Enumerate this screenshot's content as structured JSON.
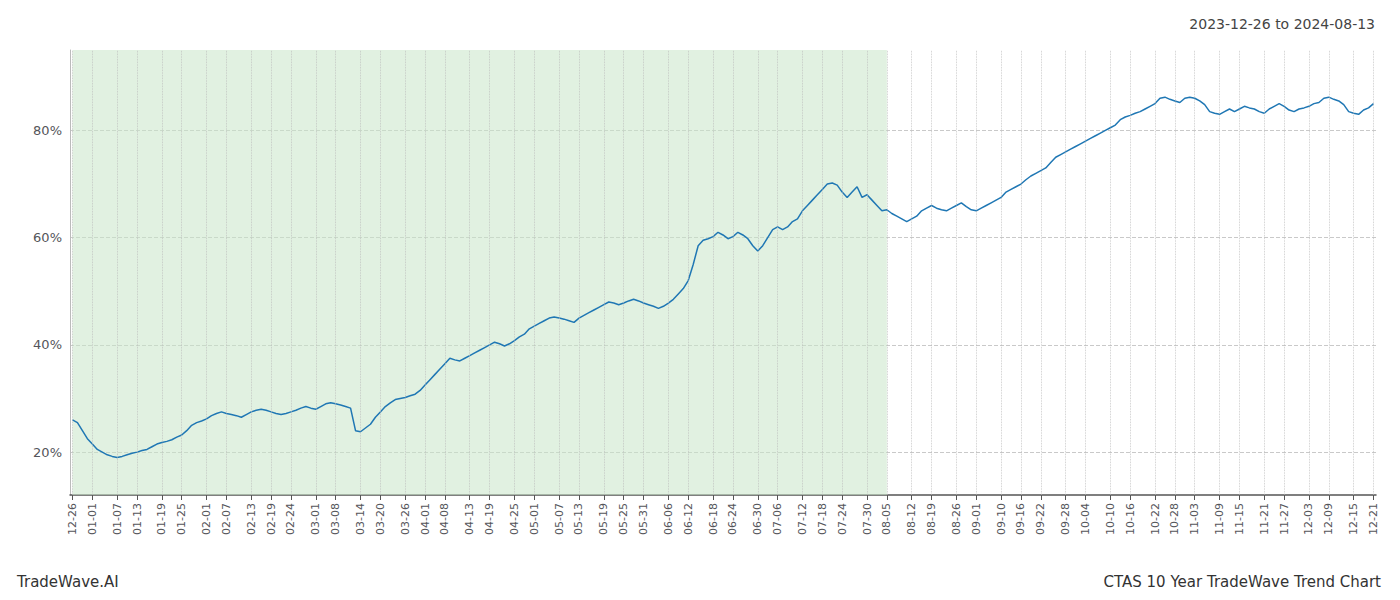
{
  "chart_data": {
    "type": "line",
    "title": "2023-12-26 to 2024-08-13",
    "annotations": [
      "TradeWave.AI",
      "CTAS 10 Year TradeWave Trend Chart"
    ],
    "color": "#1f77b4",
    "grid": true,
    "ylim": [
      12,
      95
    ],
    "yticks": [
      {
        "value": 20,
        "label": "20%"
      },
      {
        "value": 40,
        "label": "40%"
      },
      {
        "value": 60,
        "label": "60%"
      },
      {
        "value": 80,
        "label": "80%"
      }
    ],
    "shaded_region": {
      "start": "12-26",
      "end": "08-05",
      "color": "#c8e6c8"
    },
    "categories": [
      "12-26",
      null,
      null,
      null,
      "01-01",
      null,
      null,
      null,
      null,
      "01-07",
      null,
      null,
      null,
      "01-13",
      null,
      null,
      null,
      null,
      "01-19",
      null,
      null,
      null,
      "01-25",
      null,
      null,
      null,
      null,
      "02-01",
      null,
      null,
      null,
      "02-07",
      null,
      null,
      null,
      null,
      "02-13",
      null,
      null,
      null,
      "02-19",
      null,
      null,
      null,
      "02-24",
      null,
      null,
      null,
      null,
      "03-01",
      null,
      null,
      null,
      "03-08",
      null,
      null,
      null,
      null,
      "03-14",
      null,
      null,
      null,
      "03-20",
      null,
      null,
      null,
      null,
      "03-26",
      null,
      null,
      null,
      "04-01",
      null,
      null,
      null,
      "04-08",
      null,
      null,
      null,
      null,
      "04-13",
      null,
      null,
      null,
      "04-19",
      null,
      null,
      null,
      null,
      "04-25",
      null,
      null,
      null,
      "05-01",
      null,
      null,
      null,
      null,
      "05-07",
      null,
      null,
      null,
      "05-13",
      null,
      null,
      null,
      null,
      "05-19",
      null,
      null,
      null,
      "05-25",
      null,
      null,
      null,
      "05-31",
      null,
      null,
      null,
      null,
      "06-06",
      null,
      null,
      null,
      "06-12",
      null,
      null,
      null,
      null,
      "06-18",
      null,
      null,
      null,
      "06-24",
      null,
      null,
      null,
      null,
      "06-30",
      null,
      null,
      null,
      "07-06",
      null,
      null,
      null,
      null,
      "07-12",
      null,
      null,
      null,
      "07-18",
      null,
      null,
      null,
      "07-24",
      null,
      null,
      null,
      null,
      "07-30",
      null,
      null,
      null,
      "08-05",
      null,
      null,
      null,
      null,
      "08-12",
      null,
      null,
      null,
      "08-19",
      null,
      null,
      null,
      null,
      "08-26",
      null,
      null,
      null,
      "09-01",
      null,
      null,
      null,
      null,
      "09-10",
      null,
      null,
      null,
      "09-16",
      null,
      null,
      null,
      "09-22",
      null,
      null,
      null,
      null,
      "09-28",
      null,
      null,
      null,
      "10-04",
      null,
      null,
      null,
      null,
      "10-10",
      null,
      null,
      null,
      "10-16",
      null,
      null,
      null,
      null,
      "10-22",
      null,
      null,
      null,
      "10-28",
      null,
      null,
      null,
      "11-03",
      null,
      null,
      null,
      null,
      "11-09",
      null,
      null,
      null,
      "11-15",
      null,
      null,
      null,
      null,
      "11-21",
      null,
      null,
      null,
      "11-27",
      null,
      null,
      null,
      null,
      "12-03",
      null,
      null,
      null,
      "12-09",
      null,
      null,
      null,
      null,
      "12-15",
      null,
      null,
      null,
      "12-21"
    ],
    "values": [
      26.0,
      25.5,
      24.0,
      22.5,
      21.5,
      20.5,
      20.0,
      19.5,
      19.2,
      19.0,
      19.2,
      19.5,
      19.8,
      20.0,
      20.3,
      20.5,
      21.0,
      21.5,
      21.8,
      22.0,
      22.3,
      22.8,
      23.2,
      24.0,
      25.0,
      25.5,
      25.8,
      26.2,
      26.8,
      27.2,
      27.5,
      27.2,
      27.0,
      26.8,
      26.5,
      27.0,
      27.5,
      27.8,
      28.0,
      27.8,
      27.5,
      27.2,
      27.0,
      27.2,
      27.5,
      27.8,
      28.2,
      28.5,
      28.2,
      28.0,
      28.5,
      29.0,
      29.2,
      29.0,
      28.8,
      28.5,
      28.2,
      24.0,
      23.8,
      24.5,
      25.2,
      26.5,
      27.5,
      28.5,
      29.2,
      29.8,
      30.0,
      30.2,
      30.5,
      30.8,
      31.5,
      32.5,
      33.5,
      34.5,
      35.5,
      36.5,
      37.5,
      37.2,
      37.0,
      37.5,
      38.0,
      38.5,
      39.0,
      39.5,
      40.0,
      40.5,
      40.2,
      39.8,
      40.2,
      40.8,
      41.5,
      42.0,
      43.0,
      43.5,
      44.0,
      44.5,
      45.0,
      45.2,
      45.0,
      44.8,
      44.5,
      44.2,
      45.0,
      45.5,
      46.0,
      46.5,
      47.0,
      47.5,
      48.0,
      47.8,
      47.5,
      47.8,
      48.2,
      48.5,
      48.2,
      47.8,
      47.5,
      47.2,
      46.8,
      47.2,
      47.8,
      48.5,
      49.5,
      50.5,
      52.0,
      55.0,
      58.5,
      59.5,
      59.8,
      60.2,
      61.0,
      60.5,
      59.8,
      60.2,
      61.0,
      60.5,
      59.8,
      58.5,
      57.5,
      58.5,
      60.0,
      61.5,
      62.0,
      61.5,
      62.0,
      63.0,
      63.5,
      65.0,
      66.0,
      67.0,
      68.0,
      69.0,
      70.0,
      70.2,
      69.8,
      68.5,
      67.5,
      68.5,
      69.5,
      67.5,
      68.0,
      67.0,
      66.0,
      65.0,
      65.2,
      64.5,
      64.0,
      63.5,
      63.0,
      63.5,
      64.0,
      65.0,
      65.5,
      66.0,
      65.5,
      65.2,
      65.0,
      65.5,
      66.0,
      66.5,
      65.8,
      65.2,
      65.0,
      65.5,
      66.0,
      66.5,
      67.0,
      67.5,
      68.5,
      69.0,
      69.5,
      70.0,
      70.8,
      71.5,
      72.0,
      72.5,
      73.0,
      74.0,
      75.0,
      75.5,
      76.0,
      76.5,
      77.0,
      77.5,
      78.0,
      78.5,
      79.0,
      79.5,
      80.0,
      80.5,
      81.0,
      82.0,
      82.5,
      82.8,
      83.2,
      83.5,
      84.0,
      84.5,
      85.0,
      86.0,
      86.2,
      85.8,
      85.5,
      85.2,
      86.0,
      86.2,
      86.0,
      85.5,
      84.8,
      83.5,
      83.2,
      83.0,
      83.5,
      84.0,
      83.5,
      84.0,
      84.5,
      84.2,
      84.0,
      83.5,
      83.2,
      84.0,
      84.5,
      85.0,
      84.5,
      83.8,
      83.5,
      84.0,
      84.2,
      84.5,
      85.0,
      85.2,
      86.0,
      86.2,
      85.8,
      85.5,
      84.8,
      83.5,
      83.2,
      83.0,
      83.8,
      84.2,
      85.0
    ]
  }
}
